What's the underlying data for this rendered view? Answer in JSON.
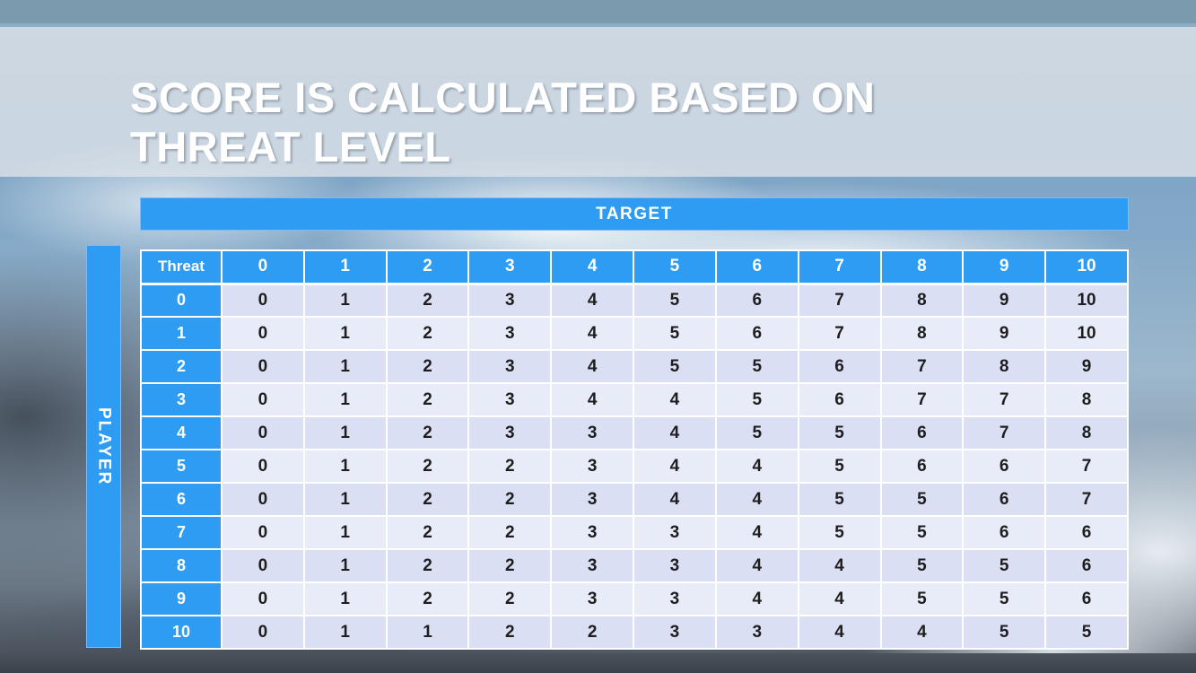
{
  "slide": {
    "title_line1": "SCORE IS CALCULATED BASED ON",
    "title_line2": "THREAT LEVEL"
  },
  "table": {
    "target_label": "TARGET",
    "player_label": "PLAYER",
    "corner_label": "Threat",
    "col_headers": [
      "0",
      "1",
      "2",
      "3",
      "4",
      "5",
      "6",
      "7",
      "8",
      "9",
      "10"
    ],
    "rows": [
      {
        "label": "0",
        "values": [
          "0",
          "1",
          "2",
          "3",
          "4",
          "5",
          "6",
          "7",
          "8",
          "9",
          "10"
        ]
      },
      {
        "label": "1",
        "values": [
          "0",
          "1",
          "2",
          "3",
          "4",
          "5",
          "6",
          "7",
          "8",
          "9",
          "10"
        ]
      },
      {
        "label": "2",
        "values": [
          "0",
          "1",
          "2",
          "3",
          "4",
          "5",
          "5",
          "6",
          "7",
          "8",
          "9"
        ]
      },
      {
        "label": "3",
        "values": [
          "0",
          "1",
          "2",
          "3",
          "4",
          "4",
          "5",
          "6",
          "7",
          "7",
          "8"
        ]
      },
      {
        "label": "4",
        "values": [
          "0",
          "1",
          "2",
          "3",
          "3",
          "4",
          "5",
          "5",
          "6",
          "7",
          "8"
        ]
      },
      {
        "label": "5",
        "values": [
          "0",
          "1",
          "2",
          "2",
          "3",
          "4",
          "4",
          "5",
          "6",
          "6",
          "7"
        ]
      },
      {
        "label": "6",
        "values": [
          "0",
          "1",
          "2",
          "2",
          "3",
          "4",
          "4",
          "5",
          "5",
          "6",
          "7"
        ]
      },
      {
        "label": "7",
        "values": [
          "0",
          "1",
          "2",
          "2",
          "3",
          "3",
          "4",
          "5",
          "5",
          "6",
          "6"
        ]
      },
      {
        "label": "8",
        "values": [
          "0",
          "1",
          "2",
          "2",
          "3",
          "3",
          "4",
          "4",
          "5",
          "5",
          "6"
        ]
      },
      {
        "label": "9",
        "values": [
          "0",
          "1",
          "2",
          "2",
          "3",
          "3",
          "4",
          "4",
          "5",
          "5",
          "6"
        ]
      },
      {
        "label": "10",
        "values": [
          "0",
          "1",
          "1",
          "2",
          "2",
          "3",
          "3",
          "4",
          "4",
          "5",
          "5"
        ]
      }
    ]
  },
  "colors": {
    "accent_blue": "#2F9CF4",
    "cell_band_dark": "#DADFF4",
    "cell_band_light": "#E8EBF8",
    "top_bar": "#7C9AAE",
    "title_text": "#FFFFFF",
    "bottom_strip": "#3A4149"
  }
}
